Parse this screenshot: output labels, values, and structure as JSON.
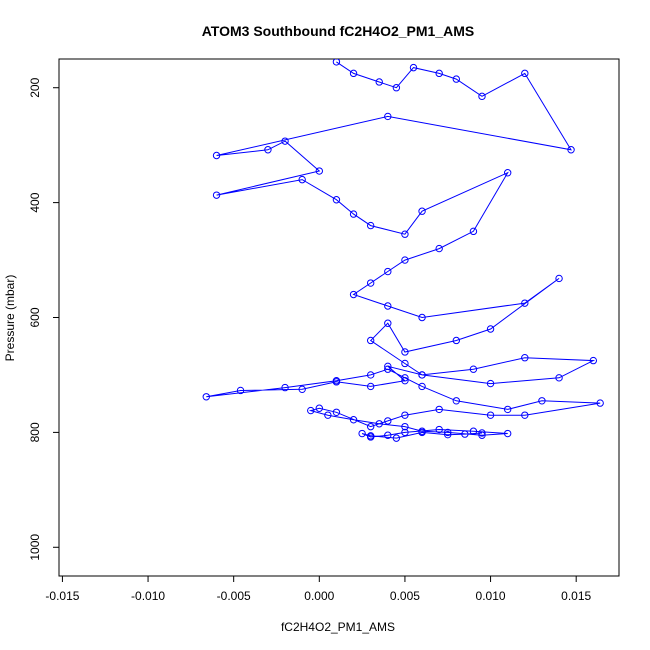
{
  "chart_data": {
    "type": "scatter",
    "title": "ATOM3 Southbound fC2H4O2_PM1_AMS",
    "xlabel": "fC2H4O2_PM1_AMS",
    "ylabel": "Pressure (mbar)",
    "xlim": [
      -0.0152,
      0.0175
    ],
    "ylim": [
      1050,
      150
    ],
    "y_reversed": true,
    "grid": false,
    "legend": "none",
    "x_ticks": [
      -0.015,
      -0.01,
      -0.005,
      0.0,
      0.005,
      0.01,
      0.015
    ],
    "x_tick_labels": [
      "-0.015",
      "-0.010",
      "-0.005",
      "0.000",
      "0.005",
      "0.010",
      "0.015"
    ],
    "y_ticks": [
      200,
      400,
      600,
      800,
      1000
    ],
    "y_tick_labels": [
      "200",
      "400",
      "600",
      "800",
      "1000"
    ],
    "series": [
      {
        "color": "#0000ff",
        "marker": "open-circle",
        "connected": true,
        "x": [
          0.001,
          0.002,
          0.0035,
          0.0045,
          0.0055,
          0.007,
          0.008,
          0.0095,
          0.012,
          0.0147,
          0.004,
          -0.006,
          -0.003,
          -0.002,
          0.0,
          -0.006,
          -0.001,
          0.001,
          0.002,
          0.003,
          0.005,
          0.006,
          0.011,
          0.009,
          0.007,
          0.005,
          0.004,
          0.003,
          0.002,
          0.004,
          0.006,
          0.012,
          0.014,
          0.01,
          0.008,
          0.005,
          0.004,
          0.003,
          0.005,
          0.006,
          0.01,
          0.014,
          0.016,
          0.012,
          0.009,
          0.006,
          0.004,
          0.005,
          0.003,
          0.001,
          -0.001,
          -0.0046,
          -0.0066,
          -0.002,
          0.001,
          0.003,
          0.004,
          0.005,
          0.006,
          0.008,
          0.011,
          0.013,
          0.0164,
          0.012,
          0.01,
          0.007,
          0.005,
          0.004,
          0.003,
          0.001,
          0.0,
          -0.0005,
          0.0005,
          0.002,
          0.0035,
          0.005,
          0.006,
          0.0075,
          0.0095,
          0.011,
          0.009,
          0.007,
          0.005,
          0.004,
          0.003,
          0.0025,
          0.003,
          0.0045,
          0.006,
          0.0075,
          0.0085,
          0.0095
        ],
        "y": [
          155,
          175,
          190,
          200,
          165,
          175,
          185,
          215,
          175,
          308,
          250,
          318,
          308,
          293,
          345,
          387,
          360,
          395,
          420,
          440,
          455,
          415,
          348,
          450,
          480,
          500,
          520,
          540,
          560,
          580,
          600,
          575,
          532,
          620,
          640,
          660,
          610,
          640,
          680,
          700,
          715,
          705,
          675,
          670,
          690,
          700,
          685,
          710,
          720,
          712,
          725,
          727,
          738,
          722,
          710,
          700,
          690,
          705,
          720,
          745,
          760,
          745,
          749,
          770,
          770,
          760,
          770,
          780,
          790,
          765,
          758,
          762,
          770,
          778,
          785,
          790,
          798,
          800,
          805,
          802,
          798,
          795,
          800,
          805,
          808,
          802,
          806,
          810,
          800,
          804,
          803,
          801
        ]
      }
    ]
  }
}
